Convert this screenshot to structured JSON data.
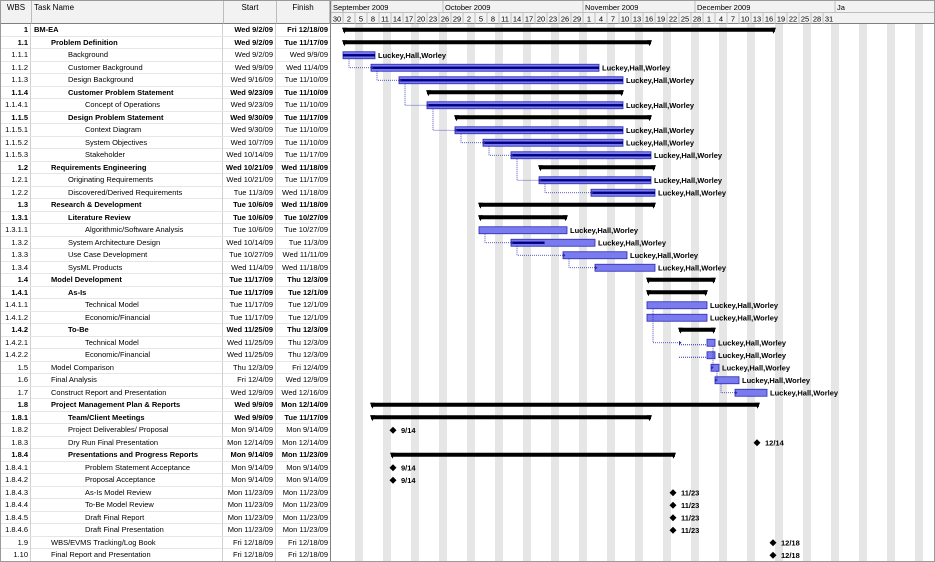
{
  "columns": {
    "wbs": "WBS",
    "name": "Task Name",
    "start": "Start",
    "finish": "Finish"
  },
  "timescale": {
    "months": [
      {
        "label": "September 2009",
        "date": "2009-08-30"
      },
      {
        "label": "October 2009",
        "date": "2009-09-27"
      },
      {
        "label": "November 2009",
        "date": "2009-11-01"
      },
      {
        "label": "December 2009",
        "date": "2009-11-29"
      },
      {
        "label": "Ja",
        "date": "2010-01-03"
      }
    ],
    "tick_days": [
      "30",
      "2",
      "5",
      "8",
      "11",
      "14",
      "17",
      "20",
      "23",
      "26",
      "29",
      "2",
      "5",
      "8",
      "11",
      "14",
      "17",
      "20",
      "23",
      "26",
      "29",
      "1",
      "4",
      "7",
      "10",
      "13",
      "16",
      "19",
      "22",
      "25",
      "28",
      "1",
      "4",
      "7",
      "10",
      "13",
      "16",
      "19",
      "22",
      "25",
      "28",
      "31"
    ]
  },
  "resource_label": "Luckey,Hall,Worley",
  "tasks": [
    {
      "wbs": "1",
      "name": "BM-EA",
      "start": "Wed 9/2/09",
      "finish": "Fri 12/18/09",
      "level": 0,
      "summary": true,
      "s": "2009-09-02",
      "f": "2009-12-18"
    },
    {
      "wbs": "1.1",
      "name": "Problem Definition",
      "start": "Wed 9/2/09",
      "finish": "Tue 11/17/09",
      "level": 1,
      "summary": true,
      "s": "2009-09-02",
      "f": "2009-11-17"
    },
    {
      "wbs": "1.1.1",
      "name": "Background",
      "start": "Wed 9/2/09",
      "finish": "Wed 9/9/09",
      "level": 2,
      "s": "2009-09-02",
      "f": "2009-09-09",
      "done": 1,
      "label": "Luckey,Hall,Worley"
    },
    {
      "wbs": "1.1.2",
      "name": "Customer Background",
      "start": "Wed 9/9/09",
      "finish": "Wed 11/4/09",
      "level": 2,
      "s": "2009-09-09",
      "f": "2009-11-04",
      "done": 1,
      "slackTo": "2009-11-04",
      "label": "Luckey,Hall,Worley"
    },
    {
      "wbs": "1.1.3",
      "name": "Design Background",
      "start": "Wed 9/16/09",
      "finish": "Tue 11/10/09",
      "level": 2,
      "s": "2009-09-16",
      "f": "2009-11-10",
      "done": 1,
      "label": "Luckey,Hall,Worley"
    },
    {
      "wbs": "1.1.4",
      "name": "Customer Problem Statement",
      "start": "Wed 9/23/09",
      "finish": "Tue 11/10/09",
      "level": 2,
      "summary": true,
      "s": "2009-09-23",
      "f": "2009-11-10"
    },
    {
      "wbs": "1.1.4.1",
      "name": "Concept of Operations",
      "start": "Wed 9/23/09",
      "finish": "Tue 11/10/09",
      "level": 3,
      "s": "2009-09-23",
      "f": "2009-11-10",
      "done": 1,
      "label": "Luckey,Hall,Worley"
    },
    {
      "wbs": "1.1.5",
      "name": "Design Problem Statement",
      "start": "Wed 9/30/09",
      "finish": "Tue 11/17/09",
      "level": 2,
      "summary": true,
      "s": "2009-09-30",
      "f": "2009-11-17"
    },
    {
      "wbs": "1.1.5.1",
      "name": "Context Diagram",
      "start": "Wed 9/30/09",
      "finish": "Tue 11/10/09",
      "level": 3,
      "s": "2009-09-30",
      "f": "2009-11-10",
      "done": 1,
      "label": "Luckey,Hall,Worley"
    },
    {
      "wbs": "1.1.5.2",
      "name": "System Objectives",
      "start": "Wed 10/7/09",
      "finish": "Tue 11/10/09",
      "level": 3,
      "s": "2009-10-07",
      "f": "2009-11-10",
      "done": 1,
      "label": "Luckey,Hall,Worley"
    },
    {
      "wbs": "1.1.5.3",
      "name": "Stakeholder",
      "start": "Wed 10/14/09",
      "finish": "Tue 11/17/09",
      "level": 3,
      "s": "2009-10-14",
      "f": "2009-11-17",
      "done": 1,
      "label": "Luckey,Hall,Worley"
    },
    {
      "wbs": "1.2",
      "name": "Requirements Engineering",
      "start": "Wed 10/21/09",
      "finish": "Wed 11/18/09",
      "level": 1,
      "summary": true,
      "s": "2009-10-21",
      "f": "2009-11-18"
    },
    {
      "wbs": "1.2.1",
      "name": "Originating Requirements",
      "start": "Wed 10/21/09",
      "finish": "Tue 11/17/09",
      "level": 2,
      "s": "2009-10-21",
      "f": "2009-11-17",
      "done": 1,
      "label": "Luckey,Hall,Worley"
    },
    {
      "wbs": "1.2.2",
      "name": "Discovered/Derived Requirements",
      "start": "Tue 11/3/09",
      "finish": "Wed 11/18/09",
      "level": 2,
      "s": "2009-11-03",
      "f": "2009-11-18",
      "done": 1,
      "label": "Luckey,Hall,Worley"
    },
    {
      "wbs": "1.3",
      "name": "Research & Development",
      "start": "Tue 10/6/09",
      "finish": "Wed 11/18/09",
      "level": 1,
      "summary": true,
      "s": "2009-10-06",
      "f": "2009-11-18"
    },
    {
      "wbs": "1.3.1",
      "name": "Literature Review",
      "start": "Tue 10/6/09",
      "finish": "Tue 10/27/09",
      "level": 2,
      "summary": true,
      "s": "2009-10-06",
      "f": "2009-10-27"
    },
    {
      "wbs": "1.3.1.1",
      "name": "Algorithmic/Software Analysis",
      "start": "Tue 10/6/09",
      "finish": "Tue 10/27/09",
      "level": 3,
      "s": "2009-10-06",
      "f": "2009-10-27",
      "done": 0,
      "label": "Luckey,Hall,Worley"
    },
    {
      "wbs": "1.3.2",
      "name": "System Architecture Design",
      "start": "Wed 10/14/09",
      "finish": "Tue 11/3/09",
      "level": 2,
      "s": "2009-10-14",
      "f": "2009-11-03",
      "done": 0.4,
      "label": "Luckey,Hall,Worley"
    },
    {
      "wbs": "1.3.3",
      "name": "Use Case Development",
      "start": "Tue 10/27/09",
      "finish": "Wed 11/11/09",
      "level": 2,
      "s": "2009-10-27",
      "f": "2009-11-11",
      "done": 0,
      "label": "Luckey,Hall,Worley"
    },
    {
      "wbs": "1.3.4",
      "name": "SysML Products",
      "start": "Wed 11/4/09",
      "finish": "Wed 11/18/09",
      "level": 2,
      "s": "2009-11-04",
      "f": "2009-11-18",
      "done": 0,
      "label": "Luckey,Hall,Worley"
    },
    {
      "wbs": "1.4",
      "name": "Model Development",
      "start": "Tue 11/17/09",
      "finish": "Thu 12/3/09",
      "level": 1,
      "summary": true,
      "s": "2009-11-17",
      "f": "2009-12-03"
    },
    {
      "wbs": "1.4.1",
      "name": "As-Is",
      "start": "Tue 11/17/09",
      "finish": "Tue 12/1/09",
      "level": 2,
      "summary": true,
      "s": "2009-11-17",
      "f": "2009-12-01"
    },
    {
      "wbs": "1.4.1.1",
      "name": "Technical Model",
      "start": "Tue 11/17/09",
      "finish": "Tue 12/1/09",
      "level": 3,
      "s": "2009-11-17",
      "f": "2009-12-01",
      "done": 0,
      "label": "Luckey,Hall,Worley"
    },
    {
      "wbs": "1.4.1.2",
      "name": "Economic/Financial",
      "start": "Tue 11/17/09",
      "finish": "Tue 12/1/09",
      "level": 3,
      "s": "2009-11-17",
      "f": "2009-12-01",
      "done": 0,
      "label": "Luckey,Hall,Worley"
    },
    {
      "wbs": "1.4.2",
      "name": "To-Be",
      "start": "Wed 11/25/09",
      "finish": "Thu 12/3/09",
      "level": 2,
      "summary": true,
      "s": "2009-11-25",
      "f": "2009-12-03"
    },
    {
      "wbs": "1.4.2.1",
      "name": "Technical Model",
      "start": "Wed 11/25/09",
      "finish": "Thu 12/3/09",
      "level": 3,
      "s": "2009-12-02",
      "f": "2009-12-03",
      "done": 0,
      "slackFrom": "2009-11-25",
      "label": "Luckey,Hall,Worley"
    },
    {
      "wbs": "1.4.2.2",
      "name": "Economic/Financial",
      "start": "Wed 11/25/09",
      "finish": "Thu 12/3/09",
      "level": 3,
      "s": "2009-12-02",
      "f": "2009-12-03",
      "done": 0,
      "slackFrom": "2009-11-25",
      "label": "Luckey,Hall,Worley"
    },
    {
      "wbs": "1.5",
      "name": "Model Comparison",
      "start": "Thu 12/3/09",
      "finish": "Fri 12/4/09",
      "level": 1,
      "s": "2009-12-03",
      "f": "2009-12-04",
      "done": 0,
      "label": "Luckey,Hall,Worley"
    },
    {
      "wbs": "1.6",
      "name": "Final Analysis",
      "start": "Fri 12/4/09",
      "finish": "Wed 12/9/09",
      "level": 1,
      "s": "2009-12-04",
      "f": "2009-12-09",
      "done": 0,
      "label": "Luckey,Hall,Worley"
    },
    {
      "wbs": "1.7",
      "name": "Construct Report and Presentation",
      "start": "Wed 12/9/09",
      "finish": "Wed 12/16/09",
      "level": 1,
      "s": "2009-12-09",
      "f": "2009-12-16",
      "done": 0,
      "label": "Luckey,Hall,Worley"
    },
    {
      "wbs": "1.8",
      "name": "Project Management Plan & Reports",
      "start": "Wed 9/9/09",
      "finish": "Mon 12/14/09",
      "level": 1,
      "summary": true,
      "s": "2009-09-09",
      "f": "2009-12-14"
    },
    {
      "wbs": "1.8.1",
      "name": "Team/Client Meetings",
      "start": "Wed 9/9/09",
      "finish": "Tue 11/17/09",
      "level": 2,
      "summary": true,
      "s": "2009-09-09",
      "f": "2009-11-17"
    },
    {
      "wbs": "1.8.2",
      "name": "Project Deliverables/ Proposal",
      "start": "Mon 9/14/09",
      "finish": "Mon 9/14/09",
      "level": 2,
      "milestone": true,
      "s": "2009-09-14",
      "label": "9/14"
    },
    {
      "wbs": "1.8.3",
      "name": "Dry Run Final Presentation",
      "start": "Mon 12/14/09",
      "finish": "Mon 12/14/09",
      "level": 2,
      "milestone": true,
      "s": "2009-12-14",
      "label": "12/14"
    },
    {
      "wbs": "1.8.4",
      "name": "Presentations and Progress Reports",
      "start": "Mon 9/14/09",
      "finish": "Mon 11/23/09",
      "level": 2,
      "summary": true,
      "s": "2009-09-14",
      "f": "2009-11-23"
    },
    {
      "wbs": "1.8.4.1",
      "name": "Problem Statement Acceptance",
      "start": "Mon 9/14/09",
      "finish": "Mon 9/14/09",
      "level": 3,
      "milestone": true,
      "s": "2009-09-14",
      "label": "9/14"
    },
    {
      "wbs": "1.8.4.2",
      "name": "Proposal Acceptance",
      "start": "Mon 9/14/09",
      "finish": "Mon 9/14/09",
      "level": 3,
      "milestone": true,
      "s": "2009-09-14",
      "label": "9/14"
    },
    {
      "wbs": "1.8.4.3",
      "name": "As-Is Model Review",
      "start": "Mon 11/23/09",
      "finish": "Mon 11/23/09",
      "level": 3,
      "milestone": true,
      "s": "2009-11-23",
      "label": "11/23"
    },
    {
      "wbs": "1.8.4.4",
      "name": "To-Be Model Review",
      "start": "Mon 11/23/09",
      "finish": "Mon 11/23/09",
      "level": 3,
      "milestone": true,
      "s": "2009-11-23",
      "label": "11/23"
    },
    {
      "wbs": "1.8.4.5",
      "name": "Draft Final Report",
      "start": "Mon 11/23/09",
      "finish": "Mon 11/23/09",
      "level": 3,
      "milestone": true,
      "s": "2009-11-23",
      "label": "11/23"
    },
    {
      "wbs": "1.8.4.6",
      "name": "Draft Final Presentation",
      "start": "Mon 11/23/09",
      "finish": "Mon 11/23/09",
      "level": 3,
      "milestone": true,
      "s": "2009-11-23",
      "label": "11/23"
    },
    {
      "wbs": "1.9",
      "name": "WBS/EVMS Tracking/Log Book",
      "start": "Fri 12/18/09",
      "finish": "Fri 12/18/09",
      "level": 1,
      "milestone": true,
      "s": "2009-12-18",
      "label": "12/18"
    },
    {
      "wbs": "1.10",
      "name": "Final Report and Presentation",
      "start": "Fri 12/18/09",
      "finish": "Fri 12/18/09",
      "level": 1,
      "milestone": true,
      "s": "2009-12-18",
      "label": "12/18"
    }
  ],
  "colors": {
    "bar": "#7b7bf0",
    "bar_border": "#2a2ab0",
    "progress": "#000080",
    "summary": "#000000",
    "weekend": "#e6e6e6",
    "slack": "#2a2ab0"
  }
}
